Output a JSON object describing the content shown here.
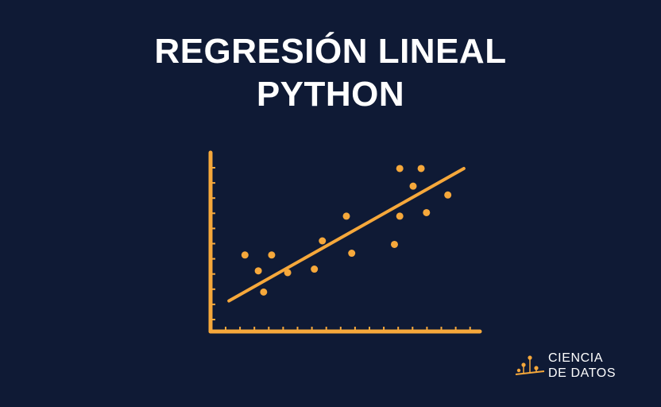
{
  "title": {
    "line1": "REGRESIÓN LINEAL",
    "line2": "PYTHON"
  },
  "brand": {
    "line1": "CIENCIA",
    "line2": "DE DATOS",
    "logo_icon": "data-points-logo-icon"
  },
  "colors": {
    "background": "#0f1a35",
    "accent": "#f6a83b",
    "text": "#ffffff"
  },
  "chart_data": {
    "type": "scatter",
    "title": "",
    "xlabel": "",
    "ylabel": "",
    "xlim": [
      0,
      100
    ],
    "ylim": [
      0,
      100
    ],
    "grid": false,
    "points": [
      {
        "x": 12,
        "y": 42
      },
      {
        "x": 17,
        "y": 33
      },
      {
        "x": 19,
        "y": 21
      },
      {
        "x": 22,
        "y": 42
      },
      {
        "x": 28,
        "y": 32
      },
      {
        "x": 38,
        "y": 34
      },
      {
        "x": 41,
        "y": 50
      },
      {
        "x": 50,
        "y": 64
      },
      {
        "x": 52,
        "y": 43
      },
      {
        "x": 68,
        "y": 48
      },
      {
        "x": 70,
        "y": 91
      },
      {
        "x": 70,
        "y": 64
      },
      {
        "x": 75,
        "y": 81
      },
      {
        "x": 78,
        "y": 91
      },
      {
        "x": 80,
        "y": 66
      },
      {
        "x": 88,
        "y": 76
      }
    ],
    "trend_line": {
      "x": [
        6,
        94
      ],
      "y": [
        16,
        91
      ]
    }
  }
}
